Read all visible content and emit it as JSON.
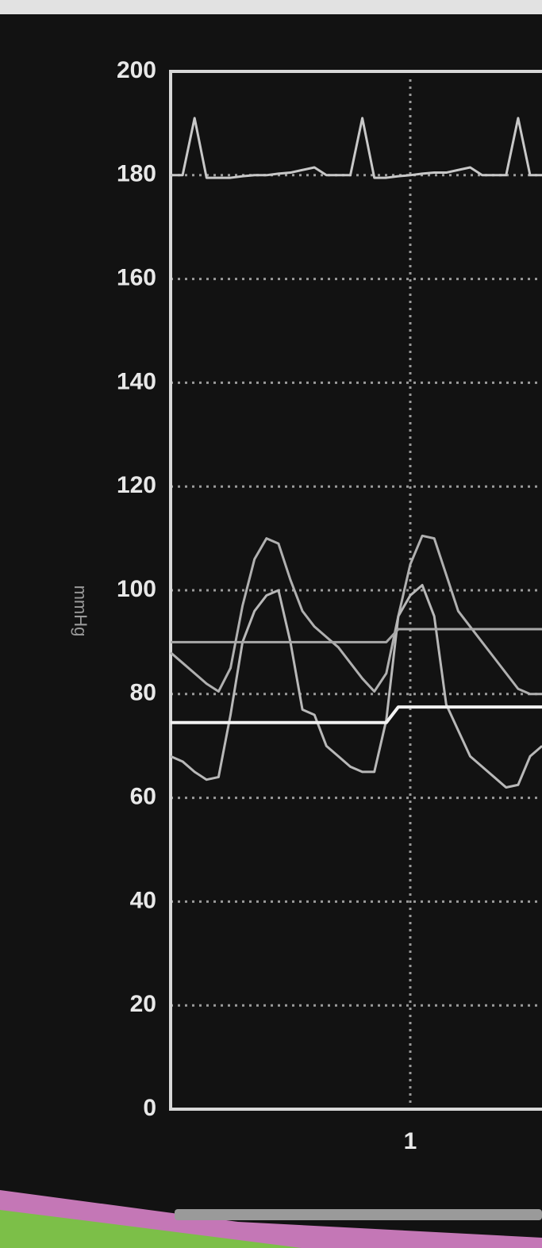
{
  "chart_data": {
    "type": "line",
    "y_label": "mmHg",
    "ylim": [
      0,
      200
    ],
    "yticks": [
      0,
      20,
      40,
      60,
      80,
      100,
      120,
      140,
      160,
      180,
      200
    ],
    "xlim": [
      0,
      1.55
    ],
    "xticks": [
      1
    ],
    "grid": true,
    "x": [
      0,
      0.05,
      0.1,
      0.15,
      0.2,
      0.25,
      0.3,
      0.35,
      0.4,
      0.45,
      0.5,
      0.55,
      0.6,
      0.65,
      0.7,
      0.75,
      0.8,
      0.85,
      0.9,
      0.95,
      1,
      1.05,
      1.1,
      1.15,
      1.2,
      1.25,
      1.3,
      1.35,
      1.4,
      1.45,
      1.5,
      1.55
    ],
    "series": [
      {
        "color": "#c8c8c8",
        "values": [
          180,
          180,
          191,
          179.5,
          179.5,
          179.5,
          179.8,
          180,
          180,
          180.3,
          180.5,
          181,
          181.5,
          180,
          180,
          180,
          191,
          179.5,
          179.5,
          179.8,
          180,
          180.3,
          180.5,
          180.5,
          181,
          181.5,
          180,
          180,
          180,
          191,
          180,
          180
        ]
      },
      {
        "color": "#b0b0b0",
        "values": [
          88,
          86,
          84,
          82,
          80.5,
          85,
          97,
          106,
          110,
          109,
          102,
          96,
          93,
          91,
          89,
          86,
          83,
          80.5,
          84,
          95,
          105,
          110.5,
          110,
          103,
          96,
          93,
          90,
          87,
          84,
          81,
          80,
          80
        ]
      },
      {
        "color": "#b8b8b8",
        "values": [
          68,
          67,
          65,
          63.5,
          64,
          76,
          90,
          96,
          99,
          100,
          90,
          77,
          76,
          70,
          68,
          66,
          65,
          65,
          75,
          95,
          99,
          101,
          95,
          78,
          73,
          68,
          66,
          64,
          62,
          62.5,
          68,
          70
        ]
      },
      {
        "color": "#a8a8a8",
        "values": [
          90,
          90,
          90,
          90,
          90,
          90,
          90,
          90,
          90,
          90,
          90,
          90,
          90,
          90,
          90,
          90,
          90,
          90,
          90,
          92.5,
          92.5,
          92.5,
          92.5,
          92.5,
          92.5,
          92.5,
          92.5,
          92.5,
          92.5,
          92.5,
          92.5,
          92.5
        ]
      },
      {
        "color": "#f2f2f2",
        "values": [
          74.5,
          74.5,
          74.5,
          74.5,
          74.5,
          74.5,
          74.5,
          74.5,
          74.5,
          74.5,
          74.5,
          74.5,
          74.5,
          74.5,
          74.5,
          74.5,
          74.5,
          74.5,
          74.5,
          77.5,
          77.5,
          77.5,
          77.5,
          77.5,
          77.5,
          77.5,
          77.5,
          77.5,
          77.5,
          77.5,
          77.5,
          77.5
        ]
      }
    ]
  }
}
